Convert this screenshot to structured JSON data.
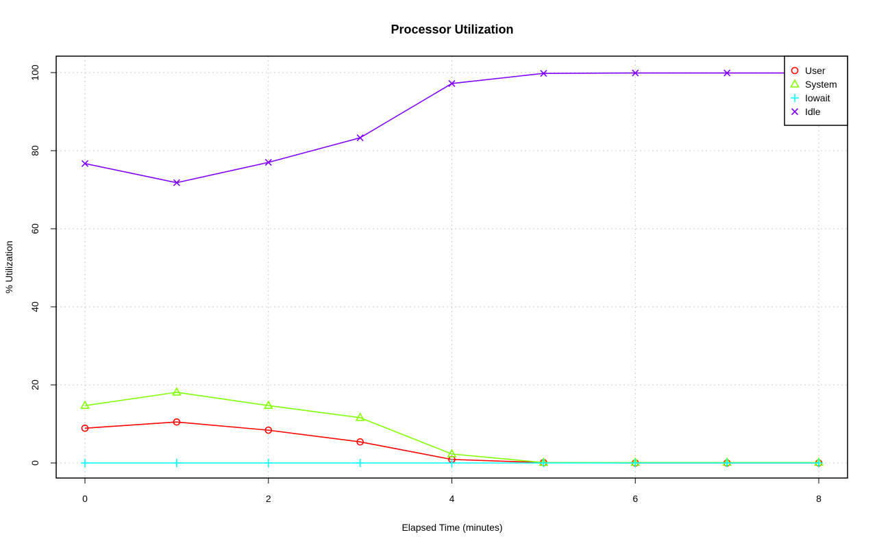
{
  "chart_data": {
    "type": "line",
    "title": "Processor Utilization",
    "xlabel": "Elapsed Time (minutes)",
    "ylabel": "% Utilization",
    "x": [
      0,
      1,
      2,
      3,
      4,
      5,
      6,
      7,
      8
    ],
    "xlim": [
      -0.3,
      8.3
    ],
    "ylim": [
      -4,
      104
    ],
    "xticks": [
      0,
      2,
      4,
      6,
      8
    ],
    "yticks": [
      0,
      20,
      40,
      60,
      80,
      100
    ],
    "grid": true,
    "legend_position": "top-right",
    "series": [
      {
        "name": "User",
        "color": "#ff0000",
        "marker": "circle",
        "values": [
          8.9,
          10.5,
          8.4,
          5.4,
          0.9,
          0.1,
          0.0,
          0.0,
          0.0
        ]
      },
      {
        "name": "System",
        "color": "#80ff00",
        "marker": "triangle",
        "values": [
          14.7,
          18.1,
          14.7,
          11.6,
          2.3,
          0.1,
          0.1,
          0.1,
          0.1
        ]
      },
      {
        "name": "Iowait",
        "color": "#00ffff",
        "marker": "plus",
        "values": [
          0,
          0,
          0,
          0,
          0,
          0,
          0,
          0,
          0
        ]
      },
      {
        "name": "Idle",
        "color": "#8000ff",
        "marker": "cross",
        "values": [
          76.7,
          71.8,
          77.0,
          83.3,
          97.2,
          99.8,
          99.9,
          99.9,
          99.9
        ]
      }
    ]
  }
}
